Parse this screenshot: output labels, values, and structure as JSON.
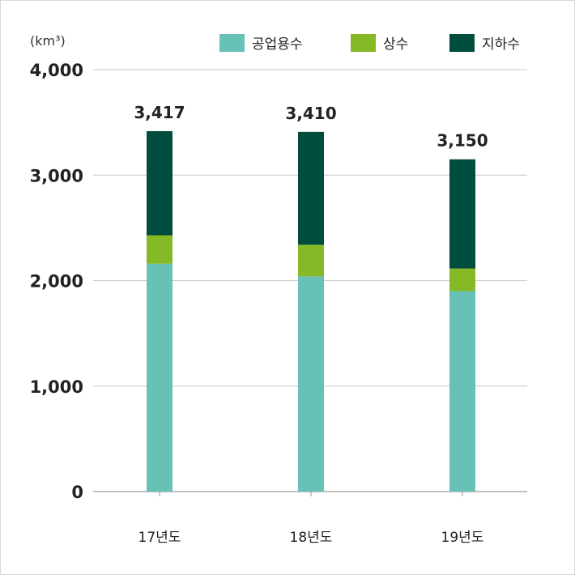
{
  "chart_data": {
    "type": "bar",
    "stacked": true,
    "unit_label": "(km³)",
    "categories": [
      "17년도",
      "18년도",
      "19년도"
    ],
    "series": [
      {
        "name": "공업용수",
        "color": "#67c1b6",
        "values": [
          2160,
          2040,
          1900
        ]
      },
      {
        "name": "상수",
        "color": "#86b926",
        "values": [
          270,
          300,
          215
        ]
      },
      {
        "name": "지하수",
        "color": "#004c3d",
        "values": [
          987,
          1070,
          1035
        ]
      }
    ],
    "totals": [
      "3,417",
      "3,410",
      "3,150"
    ],
    "yticks": [
      0,
      1000,
      2000,
      3000,
      4000
    ],
    "ytick_labels": [
      "0",
      "1,000",
      "2,000",
      "3,000",
      "4,000"
    ],
    "ylim": [
      0,
      4000
    ],
    "grid": true,
    "legend_position": "top-right"
  }
}
